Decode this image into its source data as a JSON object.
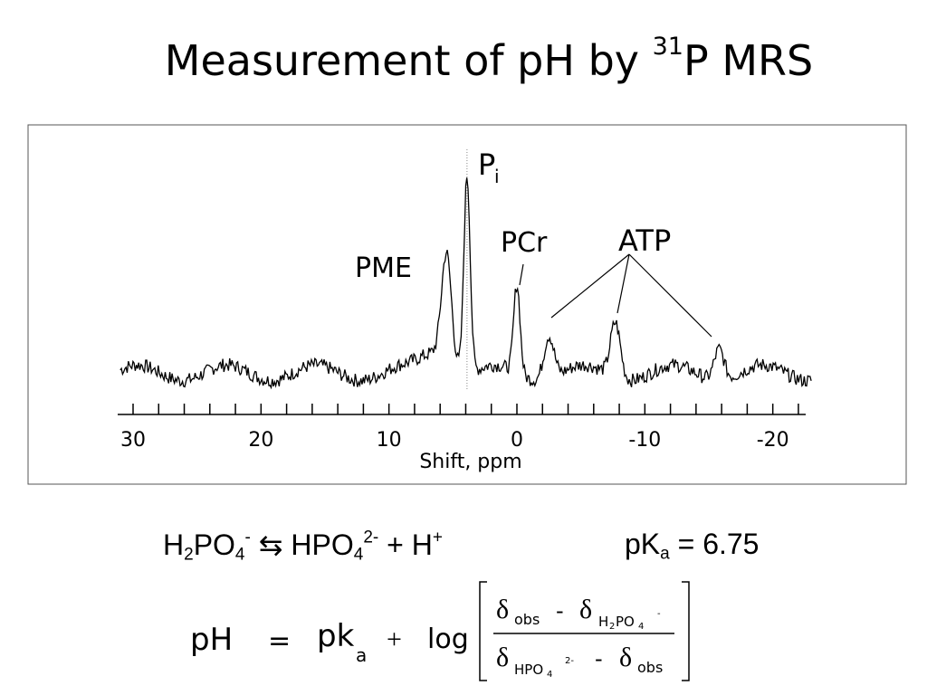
{
  "title": {
    "main": "Measurement of pH by ",
    "sup": "31",
    "rest": "P MRS"
  },
  "chart_data": {
    "type": "line",
    "title": "",
    "xlabel": "Shift, ppm",
    "ylabel": "",
    "xlim": [
      30,
      -23
    ],
    "x_reversed": true,
    "x_ticks": [
      30,
      20,
      10,
      0,
      -10,
      -20
    ],
    "x_tick_labels": [
      "30",
      "20",
      "10",
      "0",
      "-10",
      "-20"
    ],
    "reference_line_ppm": 3.9,
    "peaks": [
      {
        "label": "PME",
        "x": 5.5,
        "height": 0.55
      },
      {
        "label": "Pi",
        "x": 3.9,
        "height": 1.0
      },
      {
        "label": "PCr",
        "x": 0.0,
        "height": 0.45
      },
      {
        "label": "ATP",
        "x": -2.5,
        "height": 0.22
      },
      {
        "label": "ATP",
        "x": -7.7,
        "height": 0.28
      },
      {
        "label": "ATP",
        "x": -15.8,
        "height": 0.16
      }
    ],
    "labels": {
      "pme": "PME",
      "pi_main": "P",
      "pi_sub": "i",
      "pcr": "PCr",
      "atp": "ATP"
    }
  },
  "equation": {
    "h2po4": "H",
    "h2po4_sub": "2",
    "h2po4_po": "PO",
    "h2po4_sub2": "4",
    "h2po4_sup": "-",
    "arrow": "⇆",
    "hpo4": "HPO",
    "hpo4_sub": "4",
    "hpo4_sup": "2-",
    "plus_h": "+ H",
    "plus_h_sup": "+",
    "pka": "pK",
    "pka_sub": "a",
    "pka_val": "= 6.75"
  },
  "formula": {
    "ph": "pH",
    "eq": "=",
    "pk": "pk",
    "pk_sub": "a",
    "plus": "+",
    "log": "log",
    "delta": "δ",
    "obs": "obs",
    "minus": "-",
    "h2po4_label": "H",
    "h2po4_2": "2",
    "h2po4_po": "PO",
    "h2po4_4": "4",
    "h2po4_sup": "-",
    "hpo4_label": "HPO",
    "hpo4_4": "4",
    "hpo4_sup": "2-"
  }
}
